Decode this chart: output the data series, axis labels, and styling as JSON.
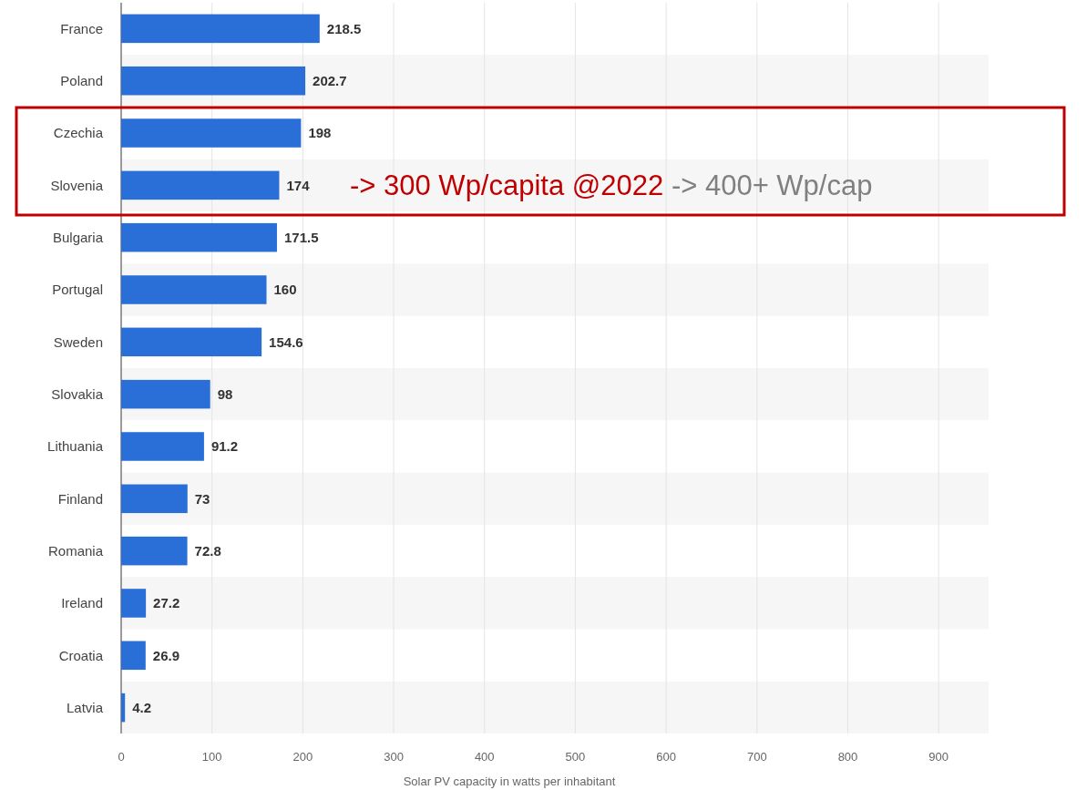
{
  "chart_data": {
    "type": "bar",
    "orientation": "horizontal",
    "categories": [
      "France",
      "Poland",
      "Czechia",
      "Slovenia",
      "Bulgaria",
      "Portugal",
      "Sweden",
      "Slovakia",
      "Lithuania",
      "Finland",
      "Romania",
      "Ireland",
      "Croatia",
      "Latvia"
    ],
    "values": [
      218.5,
      202.7,
      198,
      174,
      171.5,
      160,
      154.6,
      98,
      91.2,
      73,
      72.8,
      27.2,
      26.9,
      4.2
    ],
    "color": "#2a6ed8",
    "data_labels": true,
    "xlim": [
      0,
      955
    ],
    "xticks": [
      0,
      100,
      200,
      300,
      400,
      500,
      600,
      700,
      800,
      900
    ],
    "grid": "x",
    "xlabel": "Solar PV capacity in watts per inhabitant",
    "annotations": [
      "-> 300 Wp/capita @2022",
      "-> 400+ Wp/cap"
    ]
  }
}
